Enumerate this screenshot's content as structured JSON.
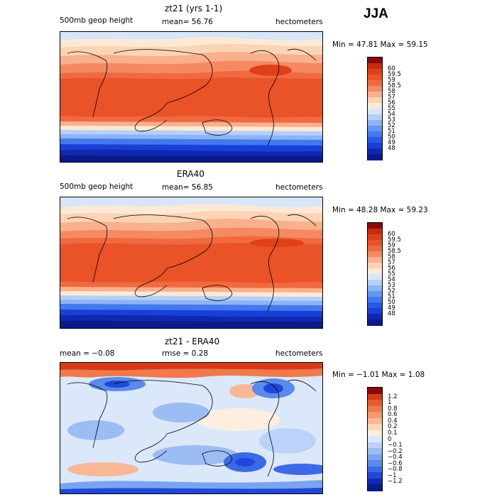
{
  "season": "JJA",
  "palette": {
    "full": [
      "#0a1a8a",
      "#1028b0",
      "#1840d8",
      "#2858e8",
      "#4478ee",
      "#6496f2",
      "#8cb4f5",
      "#b4d0f8",
      "#d8e6fa",
      "#fde9d6",
      "#fbd4b4",
      "#f9b08c",
      "#f58a62",
      "#f06a40",
      "#ea5228",
      "#e04018",
      "#c82a10",
      "#8c0a06"
    ],
    "diff": [
      "#0a1a8a",
      "#1428b8",
      "#2048d8",
      "#3c6ae6",
      "#5a8aee",
      "#7aa4f0",
      "#9cbcf4",
      "#bcd2f8",
      "#dae8fa",
      "#fdeee0",
      "#fbd6b8",
      "#f8b896",
      "#f5986e",
      "#f07a4c",
      "#e85a30",
      "#d83a18",
      "#8c0a06"
    ]
  },
  "panels": [
    {
      "title": "zt21 (yrs 1-1)",
      "left_label": "500mb geop height",
      "center_label": "mean=  56.76",
      "right_label": "hectometers",
      "minmax": "Min =  47.81 Max =  59.15",
      "colorbar_labels": [
        "60",
        "59.5",
        "59",
        "58.5",
        "58",
        "57",
        "56",
        "55",
        "54",
        "53",
        "52",
        "51",
        "50",
        "49",
        "48"
      ]
    },
    {
      "title": "ERA40",
      "left_label": "500mb geop height",
      "center_label": "mean=  56.85",
      "right_label": "hectometers",
      "minmax": "Min =  48.28 Max =  59.23",
      "colorbar_labels": [
        "60",
        "59.5",
        "59",
        "58.5",
        "58",
        "57",
        "56",
        "55",
        "54",
        "53",
        "52",
        "51",
        "50",
        "49",
        "48"
      ]
    },
    {
      "title": "zt21 - ERA40",
      "left_label": "mean =  −0.08",
      "center_label": "rmse =    0.28",
      "right_label": "hectometers",
      "minmax": "Min =  −1.01 Max =    1.08",
      "colorbar_labels": [
        "1.2",
        "1",
        "0.8",
        "0.6",
        "0.4",
        "0.2",
        "0.1",
        "0",
        "−0.1",
        "−0.2",
        "−0.4",
        "−0.6",
        "−0.8",
        "−1",
        "−1.2"
      ]
    }
  ],
  "chart_data": [
    {
      "type": "heatmap",
      "title": "zt21 (yrs 1-1)",
      "variable": "500mb geop height",
      "units": "hectometers",
      "mean": 56.76,
      "min": 47.81,
      "max": 59.15,
      "colorbar_levels": [
        60,
        59.5,
        59,
        58.5,
        58,
        57,
        56,
        55,
        54,
        53,
        52,
        51,
        50,
        49,
        48
      ]
    },
    {
      "type": "heatmap",
      "title": "ERA40",
      "variable": "500mb geop height",
      "units": "hectometers",
      "mean": 56.85,
      "min": 48.28,
      "max": 59.23,
      "colorbar_levels": [
        60,
        59.5,
        59,
        58.5,
        58,
        57,
        56,
        55,
        54,
        53,
        52,
        51,
        50,
        49,
        48
      ]
    },
    {
      "type": "heatmap",
      "title": "zt21 - ERA40",
      "units": "hectometers",
      "mean": -0.08,
      "rmse": 0.28,
      "min": -1.01,
      "max": 1.08,
      "colorbar_levels": [
        1.2,
        1,
        0.8,
        0.6,
        0.4,
        0.2,
        0.1,
        0,
        -0.1,
        -0.2,
        -0.4,
        -0.6,
        -0.8,
        -1,
        -1.2
      ]
    }
  ]
}
